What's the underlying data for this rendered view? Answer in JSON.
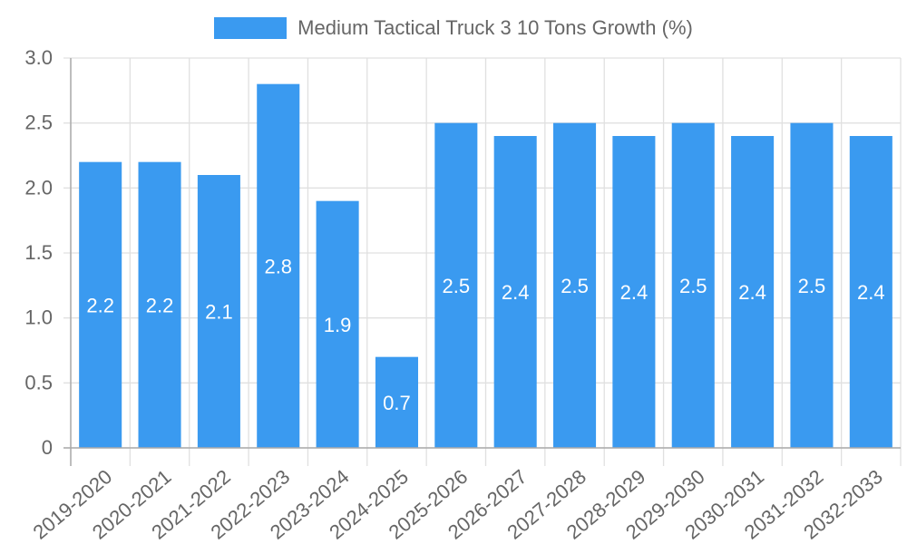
{
  "legend": {
    "label": "Medium Tactical Truck  3 10 Tons Growth (%)",
    "color": "#3a9af0"
  },
  "chart_data": {
    "type": "bar",
    "title": "",
    "xlabel": "",
    "ylabel": "",
    "ylim": [
      0,
      3.0
    ],
    "yticks": [
      "0",
      "0.5",
      "1.0",
      "1.5",
      "2.0",
      "2.5",
      "3.0"
    ],
    "grid": true,
    "legend_position": "top",
    "categories": [
      "2019-2020",
      "2020-2021",
      "2021-2022",
      "2022-2023",
      "2023-2024",
      "2024-2025",
      "2025-2026",
      "2026-2027",
      "2027-2028",
      "2028-2029",
      "2029-2030",
      "2030-2031",
      "2031-2032",
      "2032-2033"
    ],
    "series": [
      {
        "name": "Medium Tactical Truck  3 10 Tons Growth (%)",
        "color": "#3a9af0",
        "values": [
          2.2,
          2.2,
          2.1,
          2.8,
          1.9,
          0.7,
          2.5,
          2.4,
          2.5,
          2.4,
          2.5,
          2.4,
          2.5,
          2.4
        ]
      }
    ]
  }
}
